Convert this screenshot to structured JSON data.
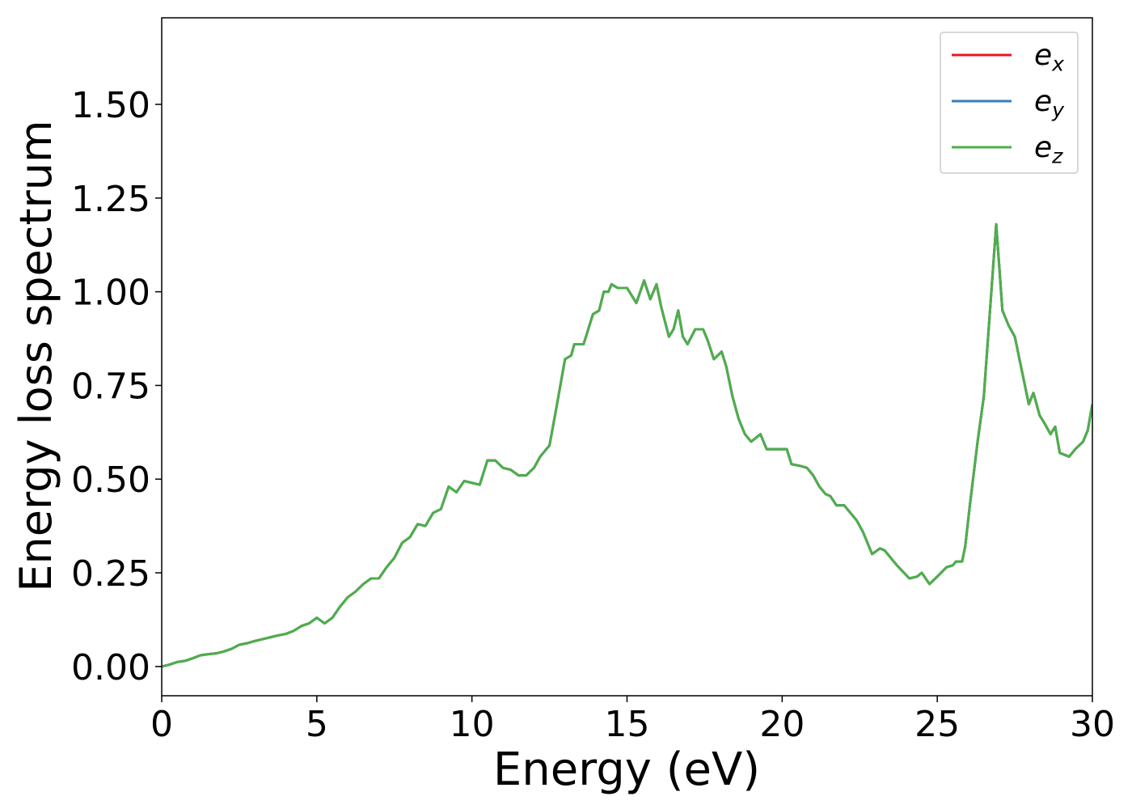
{
  "chart_data": {
    "type": "line",
    "xlabel": "Energy (eV)",
    "ylabel": "Energy loss spectrum",
    "x": [
      0,
      0.25,
      0.5,
      0.75,
      1.0,
      1.25,
      1.5,
      1.75,
      2.0,
      2.25,
      2.5,
      2.75,
      3.0,
      3.25,
      3.5,
      3.75,
      4.0,
      4.25,
      4.5,
      4.75,
      5.0,
      5.25,
      5.5,
      5.75,
      6.0,
      6.25,
      6.5,
      6.75,
      7.0,
      7.25,
      7.5,
      7.75,
      8.0,
      8.25,
      8.5,
      8.75,
      9.0,
      9.25,
      9.5,
      9.75,
      10.0,
      10.25,
      10.5,
      10.75,
      11.0,
      11.25,
      11.5,
      11.75,
      12.0,
      12.2,
      12.5,
      12.7,
      13.0,
      13.2,
      13.3,
      13.6,
      13.9,
      14.1,
      14.25,
      14.4,
      14.5,
      14.7,
      15.0,
      15.3,
      15.55,
      15.75,
      15.95,
      16.1,
      16.35,
      16.5,
      16.65,
      16.8,
      16.95,
      17.2,
      17.45,
      17.6,
      17.8,
      18.05,
      18.2,
      18.4,
      18.6,
      18.8,
      19.0,
      19.3,
      19.5,
      19.7,
      20.0,
      20.15,
      20.3,
      20.6,
      20.8,
      21.0,
      21.2,
      21.4,
      21.55,
      21.75,
      22.0,
      22.2,
      22.4,
      22.6,
      22.9,
      23.15,
      23.3,
      23.7,
      24.1,
      24.35,
      24.5,
      24.75,
      25.0,
      25.3,
      25.5,
      25.6,
      25.8,
      25.9,
      26.05,
      26.3,
      26.5,
      26.7,
      26.9,
      27.1,
      27.3,
      27.5,
      27.75,
      27.95,
      28.1,
      28.3,
      28.45,
      28.65,
      28.8,
      28.95,
      29.25,
      29.45,
      29.7,
      29.85,
      30.0
    ],
    "series": [
      {
        "name": "e_x",
        "color": "#e41a1c",
        "values": [
          0.0,
          0.005,
          0.012,
          0.015,
          0.022,
          0.03,
          0.033,
          0.035,
          0.04,
          0.047,
          0.058,
          0.062,
          0.068,
          0.073,
          0.078,
          0.083,
          0.087,
          0.095,
          0.108,
          0.115,
          0.13,
          0.115,
          0.13,
          0.16,
          0.185,
          0.2,
          0.22,
          0.235,
          0.235,
          0.265,
          0.29,
          0.33,
          0.345,
          0.38,
          0.375,
          0.41,
          0.42,
          0.48,
          0.465,
          0.495,
          0.49,
          0.485,
          0.55,
          0.55,
          0.53,
          0.525,
          0.51,
          0.51,
          0.53,
          0.56,
          0.59,
          0.68,
          0.82,
          0.83,
          0.86,
          0.86,
          0.94,
          0.95,
          1.0,
          1.0,
          1.02,
          1.01,
          1.01,
          0.97,
          1.03,
          0.98,
          1.02,
          0.96,
          0.88,
          0.9,
          0.95,
          0.88,
          0.86,
          0.9,
          0.9,
          0.87,
          0.82,
          0.84,
          0.8,
          0.72,
          0.66,
          0.62,
          0.6,
          0.62,
          0.58,
          0.58,
          0.58,
          0.58,
          0.54,
          0.535,
          0.53,
          0.51,
          0.48,
          0.46,
          0.455,
          0.43,
          0.43,
          0.41,
          0.39,
          0.36,
          0.3,
          0.315,
          0.31,
          0.27,
          0.235,
          0.24,
          0.25,
          0.22,
          0.24,
          0.265,
          0.27,
          0.28,
          0.28,
          0.32,
          0.43,
          0.6,
          0.72,
          0.95,
          1.18,
          0.95,
          0.91,
          0.88,
          0.78,
          0.7,
          0.73,
          0.67,
          0.65,
          0.62,
          0.64,
          0.57,
          0.56,
          0.58,
          0.6,
          0.63,
          0.7
        ]
      },
      {
        "name": "e_y",
        "color": "#377eb8",
        "values": [
          0.0,
          0.005,
          0.012,
          0.015,
          0.022,
          0.03,
          0.033,
          0.035,
          0.04,
          0.047,
          0.058,
          0.062,
          0.068,
          0.073,
          0.078,
          0.083,
          0.087,
          0.095,
          0.108,
          0.115,
          0.13,
          0.115,
          0.13,
          0.16,
          0.185,
          0.2,
          0.22,
          0.235,
          0.235,
          0.265,
          0.29,
          0.33,
          0.345,
          0.38,
          0.375,
          0.41,
          0.42,
          0.48,
          0.465,
          0.495,
          0.49,
          0.485,
          0.55,
          0.55,
          0.53,
          0.525,
          0.51,
          0.51,
          0.53,
          0.56,
          0.59,
          0.68,
          0.82,
          0.83,
          0.86,
          0.86,
          0.94,
          0.95,
          1.0,
          1.0,
          1.02,
          1.01,
          1.01,
          0.97,
          1.03,
          0.98,
          1.02,
          0.96,
          0.88,
          0.9,
          0.95,
          0.88,
          0.86,
          0.9,
          0.9,
          0.87,
          0.82,
          0.84,
          0.8,
          0.72,
          0.66,
          0.62,
          0.6,
          0.62,
          0.58,
          0.58,
          0.58,
          0.58,
          0.54,
          0.535,
          0.53,
          0.51,
          0.48,
          0.46,
          0.455,
          0.43,
          0.43,
          0.41,
          0.39,
          0.36,
          0.3,
          0.315,
          0.31,
          0.27,
          0.235,
          0.24,
          0.25,
          0.22,
          0.24,
          0.265,
          0.27,
          0.28,
          0.28,
          0.32,
          0.43,
          0.6,
          0.72,
          0.95,
          1.18,
          0.95,
          0.91,
          0.88,
          0.78,
          0.7,
          0.73,
          0.67,
          0.65,
          0.62,
          0.64,
          0.57,
          0.56,
          0.58,
          0.6,
          0.63,
          0.7
        ]
      },
      {
        "name": "e_z",
        "color": "#4daf4a",
        "values": [
          0.0,
          0.005,
          0.012,
          0.015,
          0.022,
          0.03,
          0.033,
          0.035,
          0.04,
          0.047,
          0.058,
          0.062,
          0.068,
          0.073,
          0.078,
          0.083,
          0.087,
          0.095,
          0.108,
          0.115,
          0.13,
          0.115,
          0.13,
          0.16,
          0.185,
          0.2,
          0.22,
          0.235,
          0.235,
          0.265,
          0.29,
          0.33,
          0.345,
          0.38,
          0.375,
          0.41,
          0.42,
          0.48,
          0.465,
          0.495,
          0.49,
          0.485,
          0.55,
          0.55,
          0.53,
          0.525,
          0.51,
          0.51,
          0.53,
          0.56,
          0.59,
          0.68,
          0.82,
          0.83,
          0.86,
          0.86,
          0.94,
          0.95,
          1.0,
          1.0,
          1.02,
          1.01,
          1.01,
          0.97,
          1.03,
          0.98,
          1.02,
          0.96,
          0.88,
          0.9,
          0.95,
          0.88,
          0.86,
          0.9,
          0.9,
          0.87,
          0.82,
          0.84,
          0.8,
          0.72,
          0.66,
          0.62,
          0.6,
          0.62,
          0.58,
          0.58,
          0.58,
          0.58,
          0.54,
          0.535,
          0.53,
          0.51,
          0.48,
          0.46,
          0.455,
          0.43,
          0.43,
          0.41,
          0.39,
          0.36,
          0.3,
          0.315,
          0.31,
          0.27,
          0.235,
          0.24,
          0.25,
          0.22,
          0.24,
          0.265,
          0.27,
          0.28,
          0.28,
          0.32,
          0.43,
          0.6,
          0.72,
          0.95,
          1.18,
          0.95,
          0.91,
          0.88,
          0.78,
          0.7,
          0.73,
          0.67,
          0.65,
          0.62,
          0.64,
          0.57,
          0.56,
          0.58,
          0.6,
          0.63,
          0.7
        ]
      }
    ],
    "xlim": [
      0,
      30
    ],
    "xticks": [
      0,
      5,
      10,
      15,
      20,
      25,
      30
    ],
    "ylim": [
      -0.078,
      1.731
    ],
    "yticks": [
      {
        "value": 0,
        "label": "0.00"
      },
      {
        "value": 0.25,
        "label": "0.25"
      },
      {
        "value": 0.5,
        "label": "0.50"
      },
      {
        "value": 0.75,
        "label": "0.75"
      },
      {
        "value": 1,
        "label": "1.00"
      },
      {
        "value": 1.25,
        "label": "1.25"
      },
      {
        "value": 1.5,
        "label": "1.50"
      }
    ],
    "grid": false,
    "legend": "upper right"
  }
}
